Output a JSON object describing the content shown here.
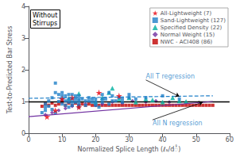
{
  "chart_data": {
    "type": "scatter",
    "title": "Without\nStirrups",
    "xlabel": "Normalized Splice Length (ℓₛ/dႆ)",
    "ylabel": "Test-to-Predicted Bar Stress",
    "xlim": [
      0,
      60
    ],
    "ylim": [
      0,
      4
    ],
    "xticks": [
      0,
      10,
      20,
      30,
      40,
      50,
      60
    ],
    "yticks": [
      0,
      1,
      2,
      3,
      4
    ],
    "grid": false,
    "legend": "upper right",
    "series": [
      {
        "name": "All-Lightweight (7)",
        "color": "#e8000d",
        "marker": "star",
        "x": [
          5.5,
          8,
          10,
          13,
          15,
          21,
          27
        ],
        "y": [
          0.52,
          0.72,
          1.08,
          1.12,
          0.82,
          1.28,
          1.18
        ]
      },
      {
        "name": "Sand-Lightweight (127)",
        "color": "#1f7fc8",
        "marker": "square",
        "x": [
          4,
          5,
          5,
          5,
          6,
          6,
          7,
          7,
          8,
          8,
          8,
          9,
          9,
          10,
          10,
          10,
          10,
          11,
          11,
          11,
          12,
          12,
          12,
          12,
          13,
          13,
          13,
          13,
          14,
          14,
          14,
          15,
          15,
          15,
          15,
          15,
          16,
          17,
          17,
          18,
          18,
          19,
          19,
          20,
          20,
          20,
          21,
          22,
          22,
          22,
          23,
          24,
          24,
          25,
          25,
          26,
          27,
          28,
          28,
          30,
          30,
          32,
          35,
          40,
          45
        ],
        "y": [
          0.65,
          0.72,
          0.82,
          0.92,
          0.85,
          1.02,
          0.75,
          1.12,
          0.65,
          1.28,
          1.58,
          1.0,
          1.22,
          0.92,
          1.08,
          1.18,
          1.28,
          0.88,
          1.02,
          1.18,
          0.82,
          0.98,
          1.08,
          1.22,
          0.88,
          0.98,
          1.08,
          1.22,
          0.98,
          1.08,
          1.18,
          0.82,
          0.92,
          1.02,
          1.08,
          1.18,
          1.08,
          0.88,
          1.02,
          1.02,
          1.12,
          0.98,
          1.08,
          0.88,
          0.98,
          1.08,
          0.82,
          0.98,
          1.08,
          1.22,
          1.08,
          0.92,
          1.28,
          1.02,
          1.18,
          1.02,
          1.12,
          0.98,
          1.08,
          1.12,
          1.22,
          1.08,
          1.12,
          1.18,
          1.08
        ]
      },
      {
        "name": "Specified Density (22)",
        "color": "#00b0a0",
        "marker": "triangle",
        "x": [
          12,
          15,
          20,
          22,
          24,
          25,
          27,
          30,
          32,
          35,
          37,
          40,
          43,
          45,
          47
        ],
        "y": [
          1.1,
          1.25,
          0.98,
          1.12,
          1.28,
          1.42,
          1.08,
          1.12,
          0.98,
          1.08,
          1.05,
          0.98,
          1.12,
          1.02,
          1.0
        ]
      },
      {
        "name": "Normal Weight (15)",
        "color": "#7030a0",
        "marker": "diamond",
        "x": [
          5,
          7,
          9,
          11,
          13,
          15,
          17,
          20,
          22,
          25,
          28,
          31,
          35,
          38,
          42
        ],
        "y": [
          0.58,
          0.65,
          0.72,
          0.78,
          0.85,
          0.88,
          0.92,
          0.88,
          0.92,
          0.98,
          0.95,
          1.02,
          0.98,
          1.02,
          0.98
        ]
      },
      {
        "name": "NWC - ACI408 (86)",
        "color": "#c00000",
        "marker": "square",
        "x": [
          4,
          5,
          6,
          7,
          8,
          9,
          10,
          11,
          12,
          13,
          14,
          15,
          16,
          17,
          18,
          19,
          20,
          21,
          22,
          23,
          24,
          25,
          26,
          27,
          28,
          29,
          30,
          31,
          32,
          33,
          34,
          35,
          36,
          37,
          38,
          39,
          40,
          41,
          42,
          43,
          44,
          45,
          46,
          47,
          48,
          49,
          50,
          51,
          52,
          53,
          54,
          55
        ],
        "y": [
          0.85,
          0.92,
          0.88,
          0.95,
          0.88,
          0.92,
          0.98,
          0.88,
          0.95,
          0.88,
          0.95,
          0.88,
          0.92,
          0.88,
          0.92,
          0.88,
          0.88,
          0.88,
          0.88,
          0.88,
          0.88,
          0.88,
          0.88,
          0.88,
          0.88,
          0.88,
          0.88,
          0.88,
          0.88,
          0.88,
          0.88,
          0.88,
          0.88,
          0.88,
          0.88,
          0.88,
          0.88,
          0.88,
          0.88,
          0.88,
          0.88,
          0.88,
          0.88,
          0.88,
          0.88,
          0.88,
          0.88,
          0.88,
          0.88,
          0.88,
          0.88,
          0.88
        ]
      }
    ],
    "hline": {
      "y": 1.0,
      "color": "#000000"
    },
    "lines": [
      {
        "x": [
          0,
          55
        ],
        "y": [
          1.1,
          1.18
        ],
        "color": "#1f7fc8",
        "line_style": "dashed"
      },
      {
        "x": [
          0,
          55
        ],
        "y": [
          0.52,
          1.0
        ],
        "color": "#7030a0",
        "line_style": "solid"
      }
    ],
    "annotations": [
      {
        "text": "All T regression",
        "xy": [
          45,
          1.16
        ],
        "xytext": [
          35,
          1.68
        ],
        "color": "#1f7fc8"
      },
      {
        "text": "All N regression",
        "xy": [
          52,
          0.98
        ],
        "xytext": [
          37,
          0.42
        ],
        "color": "#1f7fc8"
      }
    ]
  }
}
